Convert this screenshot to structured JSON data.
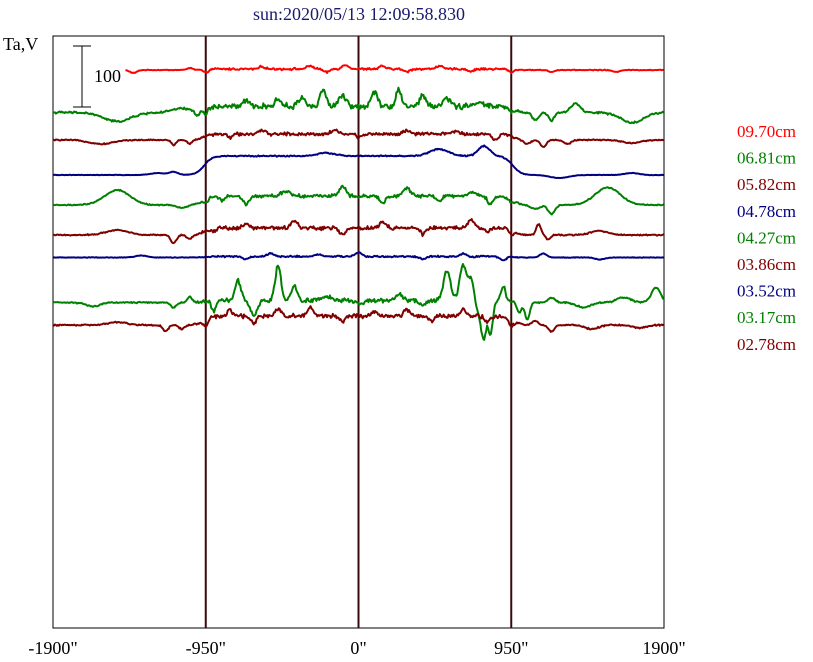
{
  "chart_data": {
    "type": "line",
    "title": "sun:2020/05/13 12:09:58.830",
    "ylabel": "Ta,V",
    "xlabel": "",
    "scale_bar_label": "100",
    "scale_bar_value": 100,
    "xlim": [
      -1900,
      1900
    ],
    "x_ticks": [
      {
        "value": -1900,
        "label": "-1900\""
      },
      {
        "value": -950,
        "label": "-950\""
      },
      {
        "value": 0,
        "label": "0\""
      },
      {
        "value": 950,
        "label": "950\""
      },
      {
        "value": 1900,
        "label": "1900\""
      }
    ],
    "vertical_lines": [
      -950,
      0,
      950
    ],
    "grid": false,
    "legend_position": "right",
    "series": [
      {
        "name": "09.70cm",
        "color": "#ff0000",
        "baseline": 0,
        "rim_rise": 2,
        "noise": 5,
        "x_start": -1450,
        "features": [
          [
            -1400,
            -6,
            30
          ],
          [
            -1050,
            4,
            25
          ],
          [
            -950,
            -7,
            20
          ],
          [
            -600,
            5,
            25
          ],
          [
            -300,
            6,
            30
          ],
          [
            -200,
            -7,
            25
          ],
          [
            -80,
            8,
            30
          ],
          [
            150,
            6,
            25
          ],
          [
            300,
            -6,
            25
          ],
          [
            500,
            6,
            30
          ],
          [
            700,
            -5,
            25
          ],
          [
            950,
            -6,
            20
          ],
          [
            1200,
            -4,
            25
          ],
          [
            1600,
            -4,
            30
          ]
        ]
      },
      {
        "name": "06.81cm",
        "color": "#008000",
        "baseline": -85,
        "rim_rise": 12,
        "noise": 14,
        "x_start": -1900,
        "features": [
          [
            -1500,
            -18,
            120
          ],
          [
            -1100,
            8,
            80
          ],
          [
            -1000,
            -10,
            20
          ],
          [
            -950,
            -12,
            15
          ],
          [
            -700,
            10,
            30
          ],
          [
            -500,
            14,
            30
          ],
          [
            -350,
            18,
            30
          ],
          [
            -220,
            36,
            25
          ],
          [
            -100,
            22,
            30
          ],
          [
            100,
            30,
            30
          ],
          [
            250,
            34,
            25
          ],
          [
            400,
            20,
            30
          ],
          [
            550,
            18,
            30
          ],
          [
            750,
            12,
            30
          ],
          [
            950,
            -8,
            18
          ],
          [
            1100,
            -14,
            30
          ],
          [
            1200,
            -16,
            25
          ],
          [
            1350,
            18,
            40
          ],
          [
            1700,
            -20,
            100
          ]
        ]
      },
      {
        "name": "05.82cm",
        "color": "#800000",
        "baseline": -140,
        "rim_rise": 12,
        "noise": 8,
        "x_start": -1900,
        "features": [
          [
            -1600,
            -8,
            100
          ],
          [
            -1150,
            -10,
            20
          ],
          [
            -1050,
            -8,
            20
          ],
          [
            -800,
            -8,
            20
          ],
          [
            -600,
            6,
            30
          ],
          [
            -150,
            8,
            30
          ],
          [
            0,
            -8,
            20
          ],
          [
            300,
            6,
            30
          ],
          [
            600,
            6,
            30
          ],
          [
            850,
            -12,
            25
          ],
          [
            1050,
            -8,
            30
          ],
          [
            1150,
            -14,
            25
          ],
          [
            1300,
            -8,
            30
          ],
          [
            1700,
            -6,
            80
          ]
        ]
      },
      {
        "name": "04.78cm",
        "color": "#000080",
        "baseline": -210,
        "rim_rise": 38,
        "noise": 3,
        "x_start": -1900,
        "features": [
          [
            -1250,
            4,
            60
          ],
          [
            -1150,
            6,
            40
          ],
          [
            -200,
            6,
            80
          ],
          [
            500,
            14,
            80
          ],
          [
            780,
            20,
            50
          ],
          [
            1250,
            -6,
            80
          ],
          [
            1700,
            4,
            60
          ]
        ]
      },
      {
        "name": "04.27cm",
        "color": "#008000",
        "baseline": -270,
        "rim_rise": 18,
        "noise": 8,
        "x_start": -1900,
        "features": [
          [
            -1500,
            30,
            110
          ],
          [
            -1100,
            -6,
            40
          ],
          [
            -950,
            -6,
            20
          ],
          [
            -850,
            -8,
            20
          ],
          [
            -700,
            -16,
            25
          ],
          [
            -450,
            10,
            40
          ],
          [
            -100,
            20,
            30
          ],
          [
            150,
            -14,
            25
          ],
          [
            300,
            16,
            30
          ],
          [
            500,
            -10,
            25
          ],
          [
            700,
            8,
            30
          ],
          [
            820,
            -16,
            25
          ],
          [
            950,
            -6,
            20
          ],
          [
            1100,
            -8,
            40
          ],
          [
            1200,
            -18,
            30
          ],
          [
            1550,
            35,
            110
          ]
        ]
      },
      {
        "name": "03.86cm",
        "color": "#800000",
        "baseline": -330,
        "rim_rise": 14,
        "noise": 9,
        "x_start": -1900,
        "features": [
          [
            -1500,
            10,
            100
          ],
          [
            -1150,
            -16,
            25
          ],
          [
            -1050,
            -8,
            25
          ],
          [
            -900,
            -6,
            20
          ],
          [
            -700,
            8,
            30
          ],
          [
            -400,
            14,
            30
          ],
          [
            -100,
            -14,
            25
          ],
          [
            150,
            10,
            30
          ],
          [
            400,
            -12,
            25
          ],
          [
            700,
            16,
            30
          ],
          [
            800,
            -10,
            20
          ],
          [
            950,
            -8,
            20
          ],
          [
            1120,
            22,
            20
          ],
          [
            1180,
            -10,
            20
          ],
          [
            1500,
            8,
            80
          ]
        ]
      },
      {
        "name": "03.52cm",
        "color": "#000080",
        "baseline": -375,
        "rim_rise": 2,
        "noise": 4,
        "x_start": -1900,
        "features": [
          [
            -1350,
            4,
            50
          ],
          [
            -700,
            -6,
            25
          ],
          [
            -550,
            6,
            30
          ],
          [
            -250,
            4,
            30
          ],
          [
            0,
            8,
            30
          ],
          [
            400,
            -5,
            30
          ],
          [
            650,
            6,
            25
          ],
          [
            900,
            -8,
            25
          ],
          [
            1150,
            8,
            30
          ],
          [
            1500,
            -4,
            40
          ]
        ]
      },
      {
        "name": "03.17cm",
        "color": "#008000",
        "baseline": -465,
        "rim_rise": 4,
        "noise": 10,
        "x_start": -1900,
        "features": [
          [
            -1650,
            -8,
            60
          ],
          [
            -1150,
            -10,
            25
          ],
          [
            -1050,
            12,
            20
          ],
          [
            -900,
            -20,
            20
          ],
          [
            -750,
            40,
            25
          ],
          [
            -650,
            -30,
            30
          ],
          [
            -500,
            70,
            25
          ],
          [
            -400,
            30,
            25
          ],
          [
            -200,
            10,
            40
          ],
          [
            0,
            -6,
            40
          ],
          [
            250,
            14,
            30
          ],
          [
            400,
            -10,
            30
          ],
          [
            550,
            60,
            30
          ],
          [
            650,
            70,
            30
          ],
          [
            700,
            40,
            25
          ],
          [
            750,
            -30,
            25
          ],
          [
            780,
            -70,
            20
          ],
          [
            820,
            -70,
            20
          ],
          [
            900,
            30,
            20
          ],
          [
            1000,
            -20,
            20
          ],
          [
            1050,
            -35,
            20
          ],
          [
            1200,
            10,
            30
          ],
          [
            1400,
            -10,
            60
          ],
          [
            1650,
            10,
            60
          ],
          [
            1850,
            30,
            40
          ]
        ]
      },
      {
        "name": "02.78cm",
        "color": "#800000",
        "baseline": -510,
        "rim_rise": 18,
        "noise": 10,
        "x_start": -1900,
        "features": [
          [
            -1500,
            6,
            80
          ],
          [
            -1200,
            -12,
            25
          ],
          [
            -1100,
            -8,
            25
          ],
          [
            -950,
            -14,
            20
          ],
          [
            -800,
            12,
            25
          ],
          [
            -650,
            -14,
            25
          ],
          [
            -500,
            14,
            25
          ],
          [
            -300,
            16,
            25
          ],
          [
            -100,
            -10,
            25
          ],
          [
            100,
            10,
            25
          ],
          [
            300,
            12,
            25
          ],
          [
            450,
            -10,
            25
          ],
          [
            650,
            14,
            25
          ],
          [
            800,
            -10,
            25
          ],
          [
            950,
            -12,
            20
          ],
          [
            1100,
            8,
            25
          ],
          [
            1200,
            -14,
            25
          ],
          [
            1450,
            -8,
            60
          ],
          [
            1750,
            -6,
            60
          ]
        ]
      }
    ]
  }
}
